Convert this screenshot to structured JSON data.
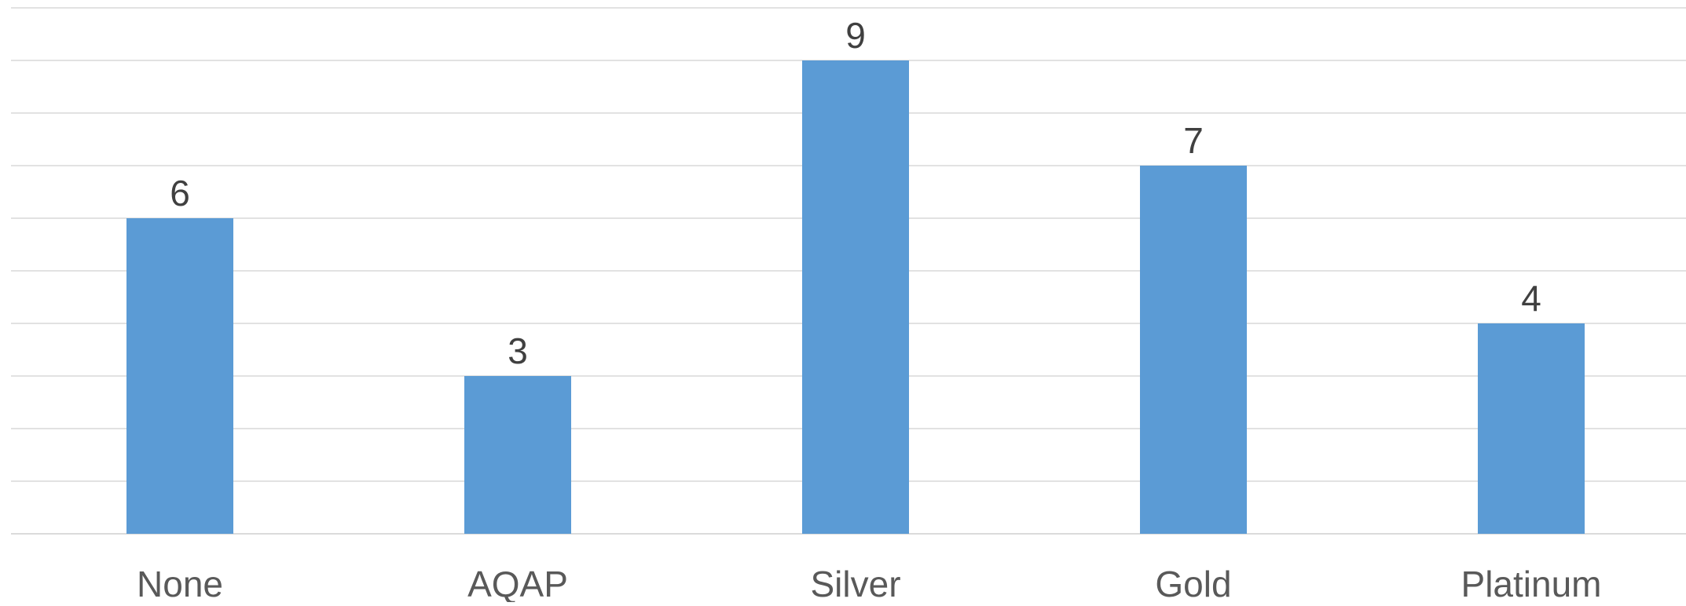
{
  "chart_data": {
    "type": "bar",
    "categories": [
      "None",
      "AQAP",
      "Silver",
      "Gold",
      "Platinum"
    ],
    "values": [
      6,
      3,
      9,
      7,
      4
    ],
    "title": "",
    "xlabel": "",
    "ylabel": "",
    "ylim": [
      0,
      10
    ],
    "grid": true,
    "data_labels": true,
    "bar_color": "#5b9bd5",
    "legend": "none"
  }
}
